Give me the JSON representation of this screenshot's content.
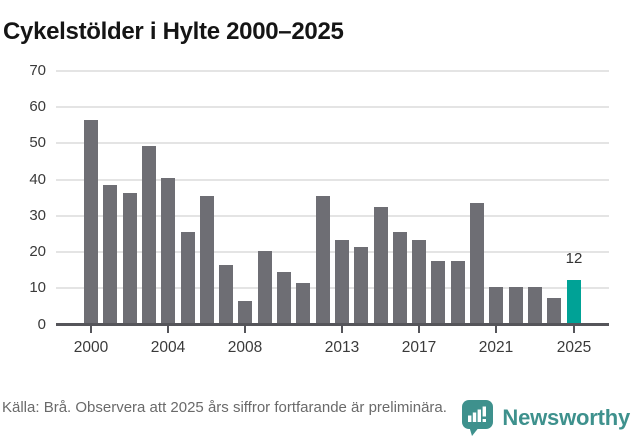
{
  "title": "Cykelstölder i Hylte 2000–2025",
  "chart_data": {
    "type": "bar",
    "title": "Cykelstölder i Hylte 2000–2025",
    "categories": [
      "2000",
      "2001",
      "2002",
      "2003",
      "2004",
      "2005",
      "2006",
      "2007",
      "2008",
      "2009",
      "2010",
      "2011",
      "2012",
      "2013",
      "2014",
      "2015",
      "2016",
      "2017",
      "2018",
      "2019",
      "2020",
      "2021",
      "2022",
      "2023",
      "2024",
      "2025"
    ],
    "values": [
      56,
      38,
      36,
      49,
      40,
      25,
      35,
      16,
      6,
      20,
      14,
      11,
      35,
      23,
      21,
      32,
      25,
      23,
      17,
      17,
      33,
      10,
      10,
      10,
      7,
      12
    ],
    "xlabel": "",
    "ylabel": "",
    "ylim": [
      0,
      70
    ],
    "yticks": [
      0,
      10,
      20,
      30,
      40,
      50,
      60,
      70
    ],
    "xtick_labels": [
      "2000",
      "2004",
      "2008",
      "2013",
      "2017",
      "2021",
      "2025"
    ],
    "grid": true,
    "legend_position": "none",
    "bar_color": "#6e6e74",
    "highlight": {
      "category": "2025",
      "value": 12,
      "label": "12",
      "color": "#00a296"
    }
  },
  "footer": {
    "source_note": "Källa: Brå. Observera att 2025 års siffror fortfarande är preliminära.",
    "brand_name": "Newsworthy",
    "brand_color": "#3e918d"
  }
}
